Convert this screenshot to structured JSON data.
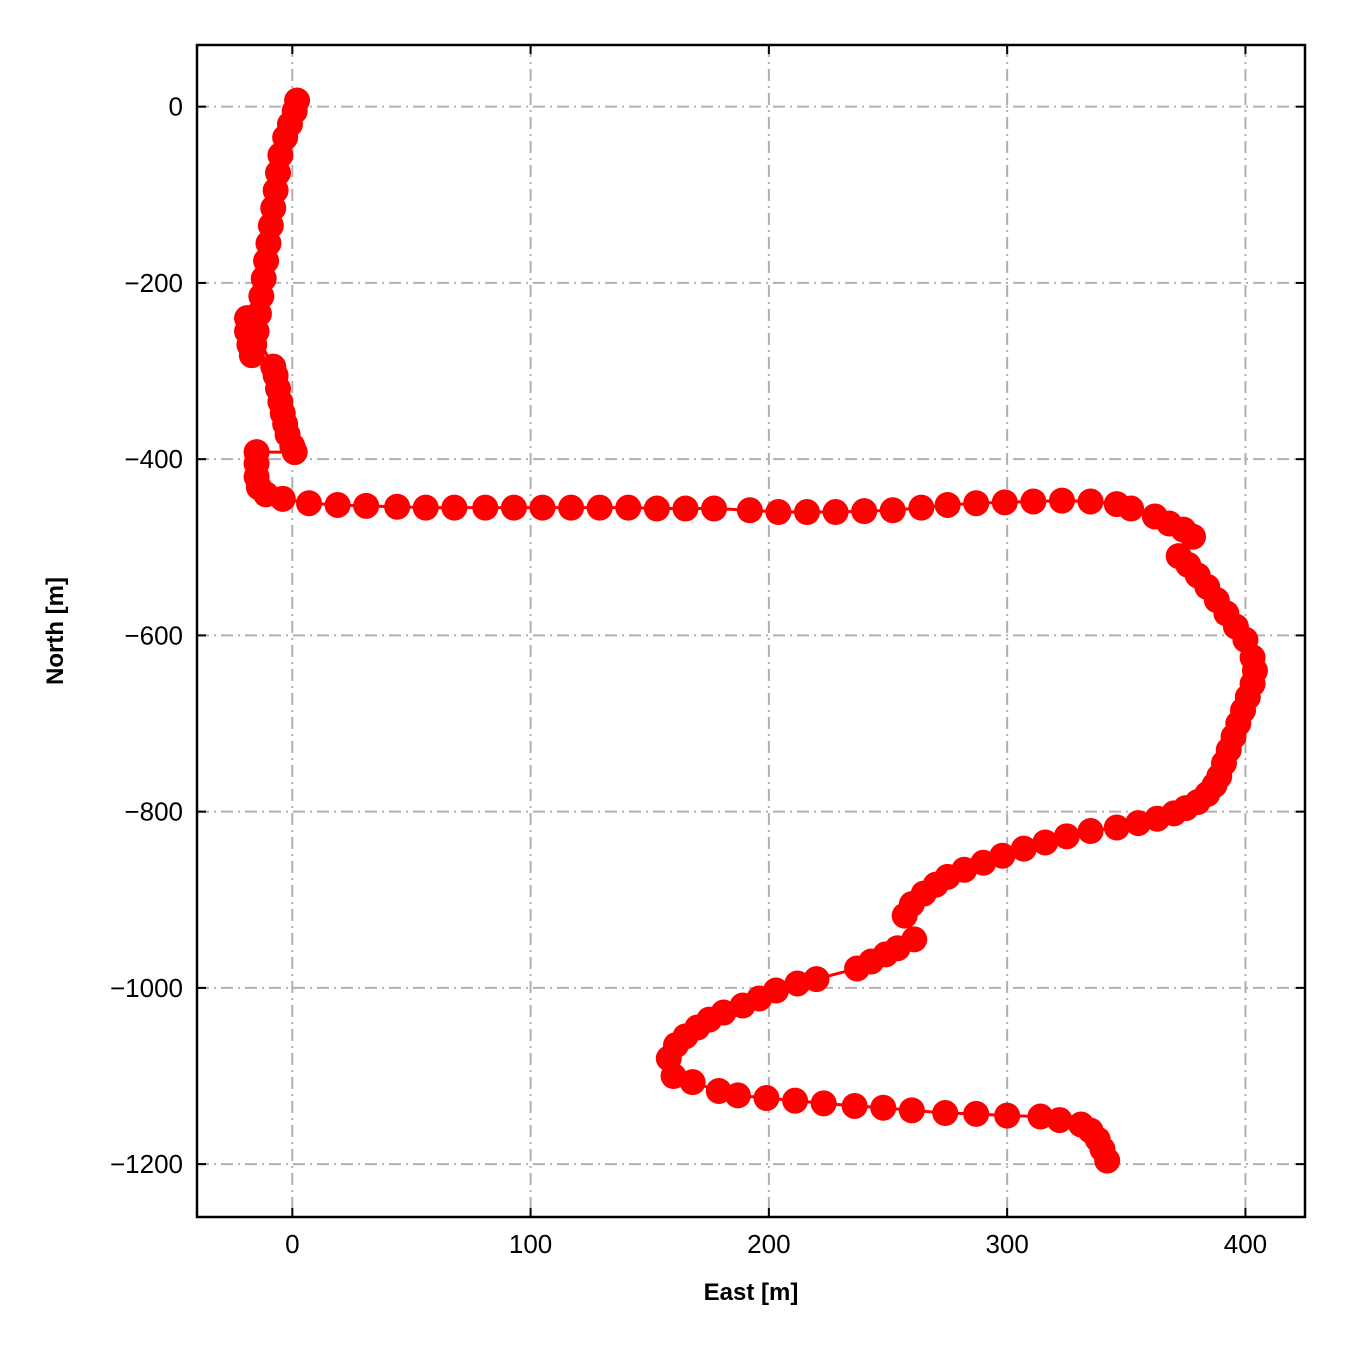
{
  "chart_data": {
    "type": "line",
    "title": "",
    "xlabel": "East [m]",
    "ylabel": "North [m]",
    "xlim": [
      -40,
      425
    ],
    "ylim": [
      -1260,
      70
    ],
    "xticks": [
      0,
      100,
      200,
      300,
      400
    ],
    "yticks": [
      0,
      -200,
      -400,
      -600,
      -800,
      -1000,
      -1200
    ],
    "xtick_labels": [
      "0",
      "100",
      "200",
      "300",
      "400"
    ],
    "ytick_labels": [
      "0",
      "−200",
      "−400",
      "−600",
      "−800",
      "−1000",
      "−1200"
    ],
    "grid": true,
    "grid_style": "dash-dot",
    "marker": "circle",
    "colors": {
      "series": "#ff0000",
      "grid": "#b0b0b0",
      "axis": "#000000"
    },
    "series": [
      {
        "x": [
          2,
          1,
          -1,
          -3,
          -5,
          -6,
          -7,
          -8,
          -9,
          -10,
          -11,
          -12,
          -13,
          -14,
          -15,
          -16,
          -17,
          -18,
          -19,
          -19,
          -8,
          -7,
          -6,
          -5,
          -4,
          -3,
          -2,
          0,
          1,
          -15,
          -15,
          -15,
          -14,
          -11,
          -4,
          7,
          19,
          31,
          44,
          56,
          68,
          81,
          93,
          105,
          117,
          129,
          141,
          153,
          165,
          177,
          192,
          204,
          216,
          228,
          240,
          252,
          264,
          275,
          287,
          299,
          311,
          323,
          335,
          346,
          352,
          362,
          368,
          374,
          378,
          372,
          376,
          380,
          384,
          388,
          392,
          396,
          400,
          403,
          404,
          403,
          401,
          399,
          397,
          395,
          393,
          391,
          389,
          387,
          384,
          380,
          375,
          370,
          363,
          355,
          346,
          335,
          325,
          316,
          307,
          298,
          290,
          282,
          275,
          270,
          265,
          260,
          257,
          261,
          254,
          249,
          243,
          237,
          220,
          212,
          203,
          196,
          189,
          181,
          175,
          170,
          165,
          161,
          158,
          160,
          168,
          179,
          187,
          199,
          211,
          223,
          236,
          248,
          260,
          274,
          287,
          300,
          314,
          322,
          331,
          335,
          338,
          340,
          342
        ],
        "y": [
          7,
          -5,
          -20,
          -35,
          -55,
          -75,
          -95,
          -115,
          -135,
          -155,
          -175,
          -195,
          -215,
          -235,
          -255,
          -270,
          -282,
          -270,
          -255,
          -240,
          -295,
          -305,
          -320,
          -335,
          -348,
          -360,
          -372,
          -385,
          -392,
          -392,
          -405,
          -420,
          -432,
          -440,
          -445,
          -450,
          -452,
          -453,
          -454,
          -455,
          -455,
          -455,
          -455,
          -455,
          -455,
          -455,
          -455,
          -456,
          -456,
          -456,
          -458,
          -460,
          -460,
          -460,
          -459,
          -458,
          -455,
          -452,
          -450,
          -449,
          -448,
          -447,
          -448,
          -451,
          -456,
          -465,
          -473,
          -480,
          -488,
          -510,
          -520,
          -532,
          -545,
          -560,
          -575,
          -590,
          -605,
          -625,
          -640,
          -655,
          -670,
          -685,
          -700,
          -715,
          -730,
          -745,
          -760,
          -770,
          -780,
          -789,
          -796,
          -802,
          -808,
          -813,
          -818,
          -822,
          -828,
          -835,
          -842,
          -850,
          -858,
          -866,
          -874,
          -883,
          -893,
          -905,
          -918,
          -945,
          -955,
          -962,
          -970,
          -978,
          -990,
          -995,
          -1003,
          -1012,
          -1020,
          -1028,
          -1036,
          -1045,
          -1055,
          -1065,
          -1080,
          -1100,
          -1107,
          -1117,
          -1122,
          -1125,
          -1128,
          -1131,
          -1134,
          -1136,
          -1139,
          -1142,
          -1143,
          -1145,
          -1146,
          -1150,
          -1155,
          -1162,
          -1172,
          -1183,
          -1196
        ]
      }
    ]
  }
}
